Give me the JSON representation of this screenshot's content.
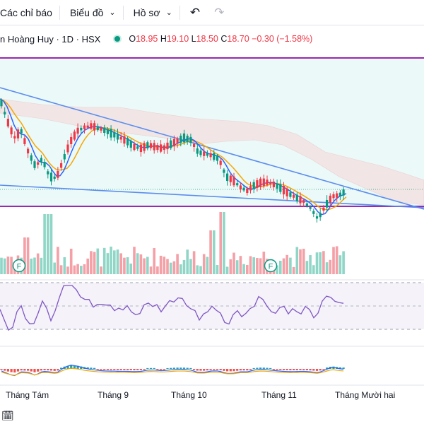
{
  "toolbar": {
    "indicators_label": "Các chỉ báo",
    "chart_type_label": "Biểu đồ",
    "profile_label": "Hồ sơ",
    "undo_icon": "undo-icon",
    "redo_icon": "redo-icon"
  },
  "legend": {
    "symbol": "n Hoàng Huy · 1D · HSX",
    "open_key": "O",
    "open": "18.95",
    "high_key": "H",
    "high": "19.10",
    "low_key": "L",
    "low": "18.50",
    "close_key": "C",
    "close": "18.70",
    "change": "−0.30 (−1.58%)"
  },
  "event_markers": [
    "F",
    "F"
  ],
  "x_axis_labels": [
    "Tháng Tám",
    "Tháng 9",
    "Tháng 10",
    "Tháng 11",
    "Tháng Mười hai"
  ],
  "colors": {
    "up": "#089981",
    "down": "#f23645",
    "rsi_line": "#7e57c2",
    "ma_fast": "#2962ff",
    "ma_slow": "#f7a600",
    "channel": "#9c27b0"
  },
  "chart_data": {
    "type": "candlestick",
    "series": [
      {
        "name": "price",
        "values": [
          19.9,
          19.7,
          19.5,
          19.6,
          19.3,
          19.0,
          18.7,
          18.6,
          19.0,
          19.4,
          19.3,
          19.5,
          19.6,
          19.5,
          19.4,
          19.3,
          19.2,
          19.3,
          19.2,
          19.1,
          19.1,
          19.2,
          19.2,
          19.3,
          19.1,
          19.0,
          19.0,
          18.9,
          18.6,
          18.5,
          18.6,
          18.4,
          18.5,
          18.5,
          18.6,
          18.5,
          18.4,
          18.3,
          18.2,
          18.5,
          18.7,
          18.7
        ]
      }
    ]
  }
}
